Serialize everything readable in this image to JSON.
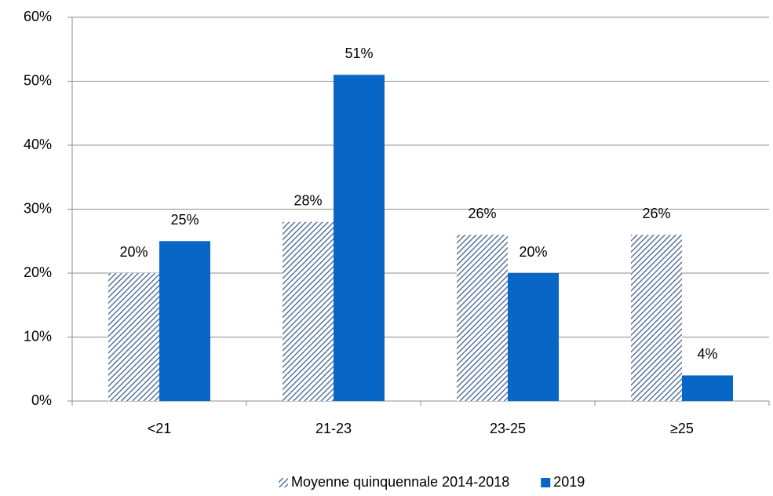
{
  "chart_data": {
    "type": "bar",
    "categories": [
      "<21",
      "21-23",
      "23-25",
      "≥25"
    ],
    "series": [
      {
        "name": "Moyenne quinquennale 2014-2018",
        "color": "#41608f",
        "pattern": "hatch",
        "values": [
          20,
          28,
          26,
          26
        ],
        "value_labels": [
          "20%",
          "28%",
          "26%",
          "26%"
        ]
      },
      {
        "name": "2019",
        "color": "#0866c6",
        "values": [
          25,
          51,
          20,
          4
        ],
        "value_labels": [
          "25%",
          "51%",
          "20%",
          "4%"
        ]
      }
    ],
    "ylim": [
      0,
      60
    ],
    "yticks": [
      {
        "value": 0,
        "label": "0%"
      },
      {
        "value": 10,
        "label": "10%"
      },
      {
        "value": 20,
        "label": "20%"
      },
      {
        "value": 30,
        "label": "30%"
      },
      {
        "value": 40,
        "label": "40%"
      },
      {
        "value": 50,
        "label": "50%"
      },
      {
        "value": 60,
        "label": "60%"
      }
    ],
    "grid": true,
    "legend": "bottom"
  }
}
